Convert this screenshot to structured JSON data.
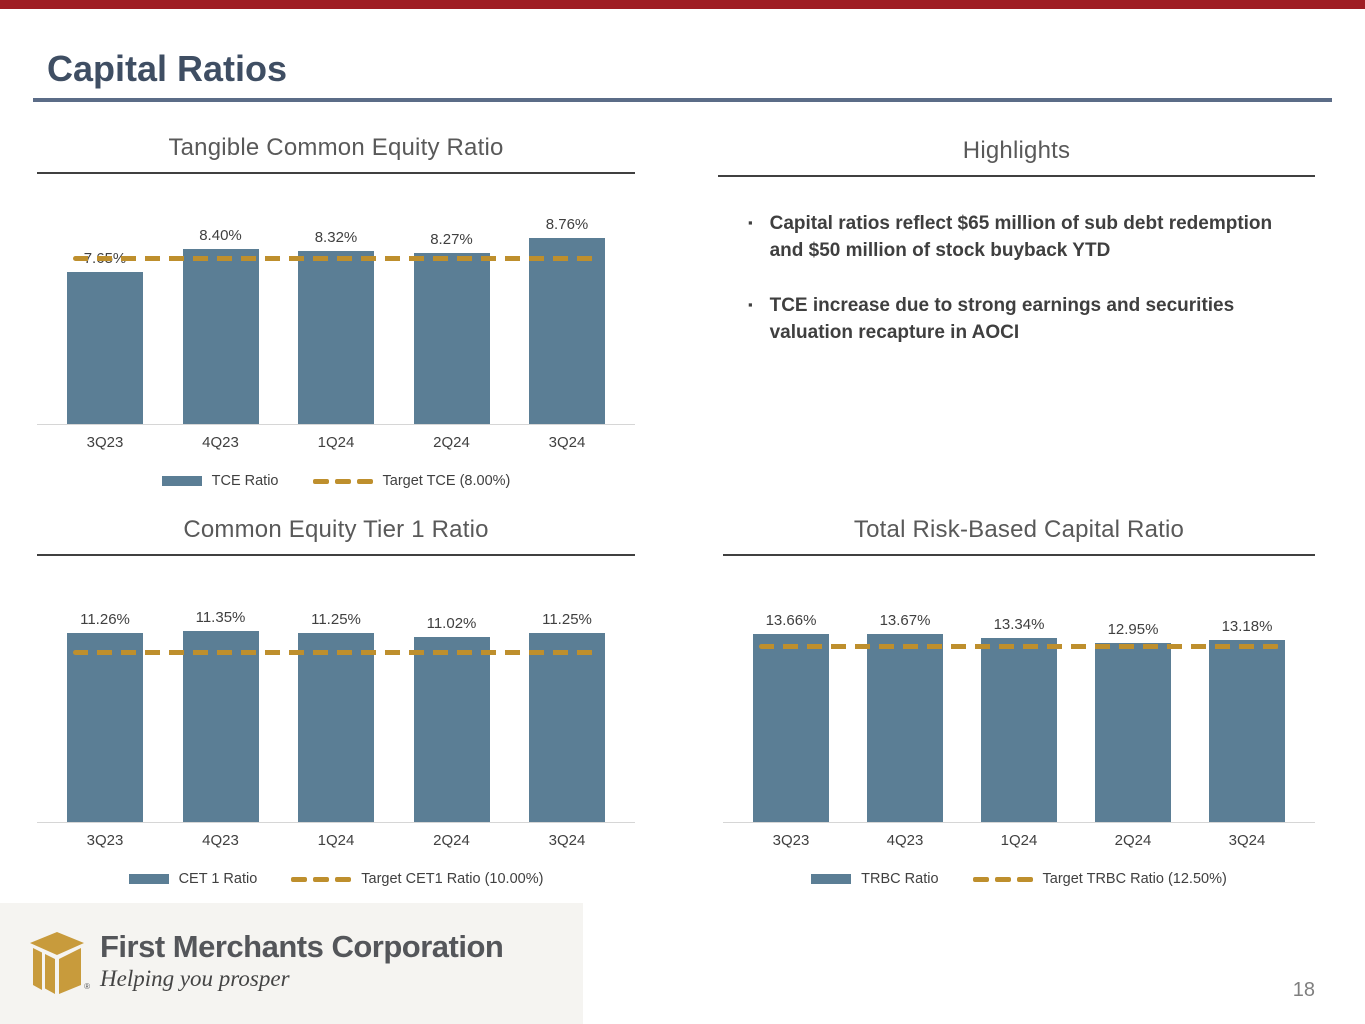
{
  "header": {
    "title": "Capital Ratios"
  },
  "highlights": {
    "title": "Highlights",
    "bullets": [
      "Capital ratios reflect $65 million of sub debt redemption and $50 million of stock buyback YTD",
      "TCE increase due to strong earnings and securities valuation recapture in AOCI"
    ]
  },
  "chart_data": [
    {
      "type": "bar",
      "title": "Tangible Common Equity Ratio",
      "categories": [
        "3Q23",
        "4Q23",
        "1Q24",
        "2Q24",
        "3Q24"
      ],
      "values": [
        7.65,
        8.4,
        8.32,
        8.27,
        8.76
      ],
      "value_labels": [
        "7.65%",
        "8.40%",
        "8.32%",
        "8.27%",
        "8.76%"
      ],
      "target": 8.0,
      "target_label": "Target TCE (8.00%)",
      "series_label": "TCE Ratio",
      "legend": [
        "TCE Ratio",
        "Target TCE (8.00%)"
      ],
      "ylim": [
        2.8,
        9.2
      ],
      "grid": false,
      "legend_position": "bottom",
      "bar_color": "#5B7E95",
      "target_color": "#BE8F2D"
    },
    {
      "type": "bar",
      "title": "Common Equity Tier 1 Ratio",
      "categories": [
        "3Q23",
        "4Q23",
        "1Q24",
        "2Q24",
        "3Q24"
      ],
      "values": [
        11.26,
        11.35,
        11.25,
        11.02,
        11.25
      ],
      "value_labels": [
        "11.26%",
        "11.35%",
        "11.25%",
        "11.02%",
        "11.25%"
      ],
      "target": 10.0,
      "target_label": "Target CET1 Ratio (10.00%)",
      "series_label": "CET 1 Ratio",
      "legend": [
        "CET 1 Ratio",
        "Target CET1 Ratio (10.00%)"
      ],
      "ylim": [
        0.3,
        11.9
      ],
      "grid": false,
      "legend_position": "bottom",
      "bar_color": "#5B7E95",
      "target_color": "#BE8F2D"
    },
    {
      "type": "bar",
      "title": "Total Risk-Based Capital Ratio",
      "categories": [
        "3Q23",
        "4Q23",
        "1Q24",
        "2Q24",
        "3Q24"
      ],
      "values": [
        13.66,
        13.67,
        13.34,
        12.95,
        13.18
      ],
      "value_labels": [
        "13.66%",
        "13.67%",
        "13.34%",
        "12.95%",
        "13.18%"
      ],
      "target": 12.5,
      "target_label": "Target TRBC Ratio (12.50%)",
      "series_label": "TRBC Ratio",
      "legend": [
        "TRBC Ratio",
        "Target TRBC Ratio (12.50%)"
      ],
      "ylim": [
        -0.9,
        14.6
      ],
      "grid": false,
      "legend_position": "bottom",
      "bar_color": "#5B7E95",
      "target_color": "#BE8F2D"
    }
  ],
  "footer": {
    "company_name": "First Merchants Corporation",
    "tagline": "Helping you prosper",
    "registered_mark": "®",
    "page_number": "18"
  },
  "icons": {
    "logo": "first-merchants-box-icon"
  },
  "colors": {
    "bar_blue": "#5B7E95",
    "target_gold": "#BE8F2D",
    "accent_red": "#9F1D23",
    "title_slate": "#3F4E63",
    "logo_gold": "#C89B3C"
  }
}
